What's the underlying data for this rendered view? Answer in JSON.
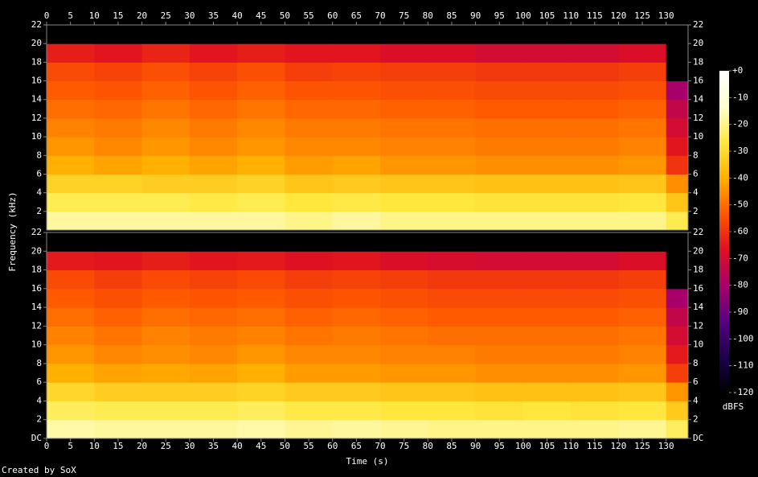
{
  "chart_data": {
    "type": "spectrogram",
    "x_label": "Time (s)",
    "y_label": "Frequency (kHz)",
    "colorbar_label": "dBFS",
    "footer": "Created by SoX",
    "xlim": [
      0,
      134.6
    ],
    "xticks": [
      0,
      5,
      10,
      15,
      20,
      25,
      30,
      35,
      40,
      45,
      50,
      55,
      60,
      65,
      70,
      75,
      80,
      85,
      90,
      95,
      100,
      105,
      110,
      115,
      120,
      125,
      130
    ],
    "ylim": [
      0,
      22
    ],
    "zlim": [
      -120,
      0
    ],
    "zticks": [
      {
        "value": 0,
        "label": "+0"
      },
      -10,
      -20,
      -30,
      -40,
      -50,
      -60,
      -70,
      -80,
      -90,
      -100,
      -110,
      -120
    ],
    "colorscale": [
      "#000000",
      "#1c0050",
      "#5a0082",
      "#a8006a",
      "#e01020",
      "#ff5800",
      "#ffb000",
      "#ffe840",
      "#ffffd0",
      "#ffffff"
    ],
    "time_bins": [
      0,
      10,
      20,
      30,
      40,
      50,
      60,
      70,
      80,
      90,
      100,
      110,
      120,
      130,
      134.6
    ],
    "freq_bins": [
      0,
      2,
      4,
      6,
      8,
      10,
      12,
      14,
      16,
      18,
      20,
      22
    ],
    "channels": [
      {
        "yticks": [
          2,
          4,
          6,
          8,
          10,
          12,
          14,
          16,
          18,
          20,
          22
        ],
        "values": [
          [
            -18,
            -18,
            -18,
            -18,
            -18,
            -20,
            -18,
            -20,
            -20,
            -20,
            -20,
            -20,
            -20,
            -25
          ],
          [
            -25,
            -25,
            -25,
            -26,
            -25,
            -27,
            -26,
            -27,
            -27,
            -28,
            -28,
            -28,
            -27,
            -35
          ],
          [
            -32,
            -32,
            -33,
            -33,
            -32,
            -35,
            -34,
            -35,
            -35,
            -36,
            -36,
            -36,
            -35,
            -45
          ],
          [
            -40,
            -42,
            -40,
            -42,
            -40,
            -43,
            -42,
            -44,
            -44,
            -45,
            -45,
            -45,
            -44,
            -60
          ],
          [
            -44,
            -46,
            -44,
            -46,
            -44,
            -46,
            -46,
            -47,
            -47,
            -48,
            -48,
            -48,
            -47,
            -66
          ],
          [
            -47,
            -48,
            -46,
            -48,
            -46,
            -48,
            -48,
            -49,
            -49,
            -50,
            -50,
            -50,
            -49,
            -70
          ],
          [
            -50,
            -51,
            -49,
            -51,
            -49,
            -51,
            -51,
            -52,
            -52,
            -53,
            -53,
            -53,
            -52,
            -74
          ],
          [
            -53,
            -54,
            -52,
            -54,
            -52,
            -54,
            -54,
            -55,
            -55,
            -56,
            -56,
            -56,
            -55,
            -80
          ],
          [
            -56,
            -57,
            -55,
            -57,
            -55,
            -58,
            -57,
            -58,
            -58,
            -59,
            -59,
            -59,
            -58,
            -120
          ],
          [
            -64,
            -66,
            -63,
            -66,
            -64,
            -66,
            -66,
            -68,
            -68,
            -70,
            -70,
            -70,
            -68,
            -120
          ],
          [
            -120,
            -120,
            -120,
            -120,
            -120,
            -120,
            -120,
            -120,
            -120,
            -120,
            -120,
            -120,
            -120,
            -120
          ]
        ]
      },
      {
        "yticks": [
          {
            "value": 0,
            "label": "DC"
          },
          2,
          4,
          6,
          8,
          10,
          12,
          14,
          16,
          18,
          20,
          22
        ],
        "values": [
          [
            -17,
            -18,
            -18,
            -18,
            -17,
            -19,
            -18,
            -19,
            -20,
            -20,
            -20,
            -20,
            -19,
            -24
          ],
          [
            -24,
            -25,
            -25,
            -25,
            -24,
            -26,
            -26,
            -27,
            -27,
            -28,
            -27,
            -28,
            -27,
            -34
          ],
          [
            -31,
            -33,
            -33,
            -33,
            -32,
            -34,
            -34,
            -35,
            -35,
            -36,
            -36,
            -36,
            -35,
            -44
          ],
          [
            -40,
            -42,
            -41,
            -42,
            -40,
            -43,
            -43,
            -44,
            -44,
            -45,
            -45,
            -45,
            -44,
            -58
          ],
          [
            -44,
            -46,
            -45,
            -46,
            -44,
            -46,
            -46,
            -47,
            -47,
            -48,
            -48,
            -48,
            -47,
            -65
          ],
          [
            -47,
            -49,
            -47,
            -48,
            -47,
            -49,
            -48,
            -49,
            -50,
            -50,
            -50,
            -50,
            -49,
            -70
          ],
          [
            -50,
            -52,
            -50,
            -51,
            -50,
            -52,
            -51,
            -52,
            -53,
            -53,
            -53,
            -53,
            -52,
            -74
          ],
          [
            -53,
            -55,
            -53,
            -54,
            -53,
            -55,
            -54,
            -55,
            -56,
            -56,
            -56,
            -56,
            -55,
            -80
          ],
          [
            -56,
            -58,
            -56,
            -57,
            -56,
            -58,
            -57,
            -58,
            -59,
            -59,
            -59,
            -59,
            -58,
            -120
          ],
          [
            -65,
            -66,
            -64,
            -66,
            -65,
            -67,
            -66,
            -68,
            -69,
            -70,
            -70,
            -70,
            -68,
            -120
          ],
          [
            -120,
            -120,
            -120,
            -120,
            -120,
            -120,
            -120,
            -120,
            -120,
            -120,
            -120,
            -120,
            -120,
            -120
          ]
        ]
      }
    ]
  }
}
